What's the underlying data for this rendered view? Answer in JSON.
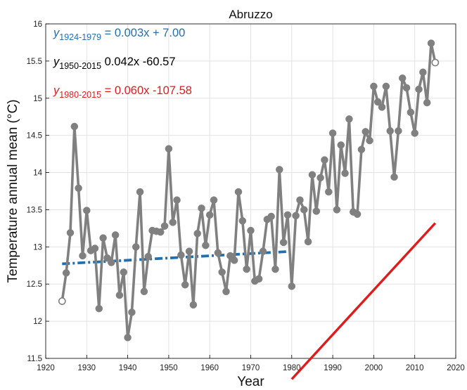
{
  "chart_data": {
    "type": "line",
    "title": "Abruzzo",
    "xlabel": "Year",
    "ylabel": "Temperature annual mean (°C)",
    "xlim": [
      1920,
      2020
    ],
    "ylim": [
      11.5,
      16
    ],
    "xticks": [
      1920,
      1930,
      1940,
      1950,
      1960,
      1970,
      1980,
      1990,
      2000,
      2010,
      2020
    ],
    "yticks": [
      11.5,
      12,
      12.5,
      13,
      13.5,
      14,
      14.5,
      15,
      15.5,
      16
    ],
    "xtick_labels": [
      "1920",
      "1930",
      "1940",
      "1950",
      "1960",
      "1970",
      "1980",
      "1990",
      "2000",
      "2010",
      "2020"
    ],
    "ytick_labels": [
      "11.5",
      "12",
      "12.5",
      "13",
      "13.5",
      "14",
      "14.5",
      "15",
      "15.5",
      "16"
    ],
    "grid": true,
    "series": [
      {
        "color": "#808080",
        "x": [
          1924,
          1925,
          1926,
          1927,
          1928,
          1929,
          1930,
          1931,
          1932,
          1933,
          1934,
          1935,
          1936,
          1937,
          1938,
          1939,
          1940,
          1941,
          1942,
          1943,
          1944,
          1945,
          1946,
          1947,
          1948,
          1949,
          1950,
          1951,
          1952,
          1953,
          1954,
          1955,
          1956,
          1957,
          1958,
          1959,
          1960,
          1961,
          1962,
          1963,
          1964,
          1965,
          1966,
          1967,
          1968,
          1969,
          1970,
          1971,
          1972,
          1973,
          1974,
          1975,
          1976,
          1977,
          1978,
          1979,
          1980,
          1981,
          1982,
          1983,
          1984,
          1985,
          1986,
          1987,
          1988,
          1989,
          1990,
          1991,
          1992,
          1993,
          1994,
          1995,
          1996,
          1997,
          1998,
          1999,
          2000,
          2001,
          2002,
          2003,
          2004,
          2005,
          2006,
          2007,
          2008,
          2009,
          2010,
          2011,
          2012,
          2013,
          2014,
          2015
        ],
        "y": [
          12.27,
          12.65,
          13.19,
          14.62,
          13.79,
          12.88,
          13.49,
          12.95,
          12.98,
          12.17,
          13.12,
          12.85,
          12.79,
          13.16,
          12.35,
          12.66,
          11.78,
          12.12,
          13.0,
          13.74,
          12.4,
          12.87,
          13.22,
          13.21,
          13.2,
          13.28,
          14.32,
          13.33,
          13.63,
          12.89,
          12.49,
          12.94,
          12.22,
          13.18,
          13.52,
          13.02,
          13.43,
          13.63,
          12.92,
          12.66,
          12.4,
          12.88,
          12.82,
          13.74,
          13.35,
          12.7,
          13.22,
          12.54,
          12.57,
          12.94,
          13.37,
          13.41,
          12.7,
          14.04,
          13.06,
          13.43,
          12.47,
          13.42,
          13.63,
          13.5,
          13.07,
          13.97,
          13.48,
          13.93,
          14.17,
          13.74,
          14.53,
          13.5,
          14.37,
          13.99,
          14.72,
          13.47,
          13.44,
          14.31,
          14.55,
          14.43,
          15.16,
          14.95,
          14.88,
          15.16,
          14.56,
          13.94,
          14.56,
          15.27,
          15.14,
          14.81,
          14.53,
          15.12,
          15.35,
          14.94,
          15.74,
          15.48
        ]
      }
    ],
    "trend_lines": [
      {
        "label_var": "y",
        "label_sub": "1924-1979",
        "label_eq": " = 0.003x + 7.00",
        "color": "#1f6fb2",
        "slope": 0.003,
        "intercept": 7.0,
        "x_range": [
          1924,
          1979
        ],
        "style": "dash-dot"
      },
      {
        "label_var": "y",
        "label_sub": "1950-2015",
        "label_eq": " 0.042x -60.57",
        "color": "#000000",
        "slope": 0.042,
        "intercept": -60.57,
        "x_range": [
          1950,
          2015
        ],
        "style": "dashed"
      },
      {
        "label_var": "y",
        "label_sub": "1980-2015",
        "label_eq": " = 0.060x -107.58",
        "color": "#e11b1b",
        "slope": 0.06,
        "intercept": -107.58,
        "x_range": [
          1980,
          2015
        ],
        "style": "solid"
      }
    ]
  }
}
